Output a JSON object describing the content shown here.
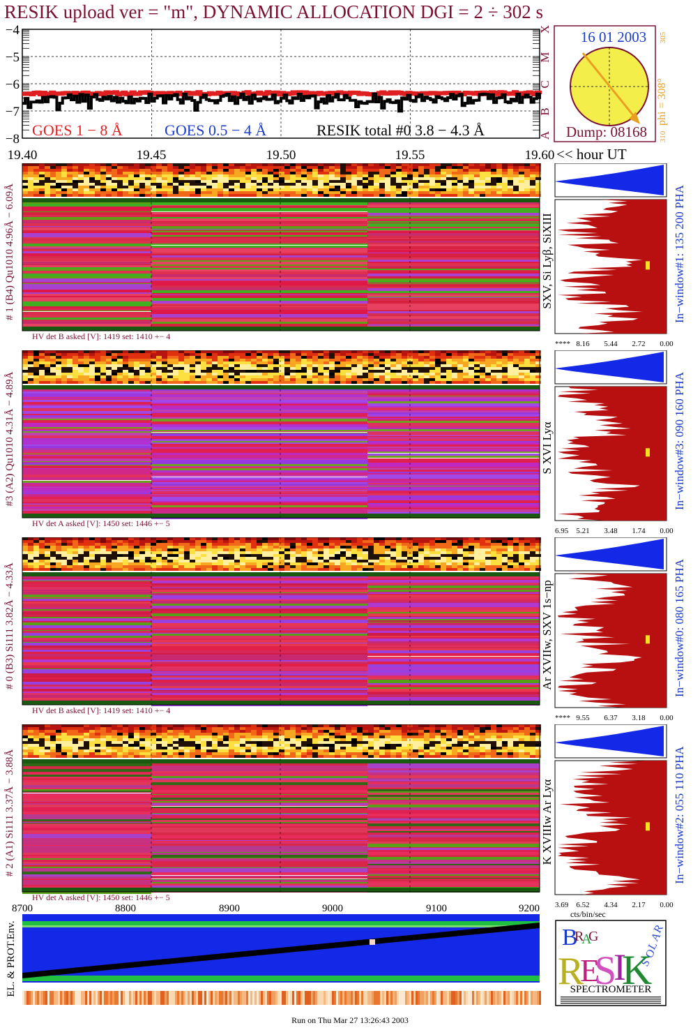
{
  "header": {
    "title": "RESIK upload ver = \"m\", DYNAMIC ALLOCATION  DGI =   2 ÷ 302 s"
  },
  "goes_panel": {
    "y_ticks": [
      "−4",
      "−5",
      "−6",
      "−7",
      "−8"
    ],
    "class_letters": [
      "X",
      "M",
      "C",
      "B",
      "A"
    ],
    "legend": {
      "goes_long": "GOES 1 − 8 Å",
      "goes_short": "GOES 0.5 − 4 Å",
      "resik_total": "RESIK total #0  3.8 − 4.3 Å"
    },
    "x_ticks": [
      "19.40",
      "19.45",
      "19.50",
      "19.55",
      "19.60"
    ],
    "x_unit": "<< hour UT"
  },
  "orbit_panel": {
    "date": "16 01 2003",
    "phi_label": "phi = 308°",
    "phi_small_top": "305",
    "phi_small_bottom": "310",
    "dump_label": "Dump: 08168",
    "colors": {
      "disk": "#f4ee4a",
      "border": "#7a1030",
      "arrow": "#e8a020"
    }
  },
  "channels": [
    {
      "left_label": "# 1 (B4) Qu1010 4.96Å − 6.09Å",
      "line_label": "SXV, Si Lyβ, SiXIII",
      "window_label": "In−window#1:  135 200 PHA",
      "hv_text": "HV det B asked [V]:  1419 set:  1410  +−    4",
      "pha_ticks": [
        "****",
        "8.16",
        "5.44",
        "2.72",
        "0.00"
      ],
      "palette": [
        "#e01848",
        "#d82040",
        "#e03050",
        "#c82c6c",
        "#a840d0",
        "#e84060",
        "#60a018",
        "#40b020",
        "#d82c4c"
      ]
    },
    {
      "left_label": "#3 (A2) Qu1010  4.31Å − 4.89Å",
      "line_label": "S XVI Lyα",
      "window_label": "In−window#3:  090 160 PHA",
      "hv_text": "HV det A asked [V]:  1450 set:  1446  +−    5",
      "pha_ticks": [
        "6.95",
        "5.21",
        "3.48",
        "1.74",
        "0.00"
      ],
      "palette": [
        "#b030d0",
        "#c028c0",
        "#9838e0",
        "#d02888",
        "#e02050",
        "#c040b0",
        "#a048e8",
        "#e03060",
        "#70a020"
      ]
    },
    {
      "left_label": "# 0 (B3) Si111  3.82Å − 4.33Å",
      "line_label": "Ar XVIIw,  SXV 1s−np",
      "window_label": "In−window#0:  080 165 PHA",
      "hv_text": "HV det B asked [V]:  1419 set:  1410  +−    4",
      "pha_ticks": [
        "****",
        "9.55",
        "6.37",
        "3.18",
        "0.00"
      ],
      "palette": [
        "#e02048",
        "#d82858",
        "#b038d0",
        "#e03060",
        "#c82870",
        "#9840e0",
        "#58a018",
        "#e83850",
        "#d01c44"
      ]
    },
    {
      "left_label": "# 2 (A1) Si111  3.37Å − 3.88Å",
      "line_label": "K XVIIIw  Ar Lyα",
      "window_label": "In−window#2:  055 110 PHA",
      "hv_text": "HV det A asked [V]:  1450 set:  1446  +−    5",
      "pha_ticks": [
        "3.69",
        "6.52",
        "4.34",
        "2.17",
        "0.00"
      ],
      "palette": [
        "#e02050",
        "#c83080",
        "#d82848",
        "#a840c8",
        "#58a018",
        "#e03858",
        "#306818",
        "#e82c5c",
        "#b83890"
      ]
    }
  ],
  "pha_unit": "cts/bin/sec",
  "bottom_panel": {
    "x_ticks": [
      "8700",
      "8800",
      "8900",
      "9000",
      "9100",
      "9200"
    ],
    "ylabel": "EL. & PROT.Env."
  },
  "footer": {
    "run_text": "Run on Thu Mar 27 13:26:43 2003"
  },
  "logo": {
    "text": "SPECTROMETER",
    "letters": [
      "B",
      "R",
      "A",
      "G",
      "R",
      "E",
      "S",
      "I",
      "K",
      "S",
      "O",
      "L",
      "A",
      "R"
    ]
  },
  "chart_data": {
    "type": "line",
    "title": "RESIK upload ver = \"m\", DYNAMIC ALLOCATION  DGI =   2 ÷ 302 s",
    "xlabel": "<< hour UT",
    "x_range": [
      19.4,
      19.6
    ],
    "x_ticks": [
      19.4,
      19.45,
      19.5,
      19.55,
      19.6
    ],
    "ylim": [
      -8,
      -4
    ],
    "y_ticks": [
      -4,
      -5,
      -6,
      -7,
      -8
    ],
    "grid": true,
    "series": [
      {
        "name": "GOES 1 − 8 Å",
        "color": "#e02020",
        "level": -6.35
      },
      {
        "name": "RESIK total #0  3.8 − 4.3 Å",
        "color": "#000000",
        "level": -6.55
      }
    ],
    "bottom_x_range": [
      8700,
      9200
    ],
    "bottom_x_ticks": [
      8700,
      8800,
      8900,
      9000,
      9100,
      9200
    ]
  }
}
